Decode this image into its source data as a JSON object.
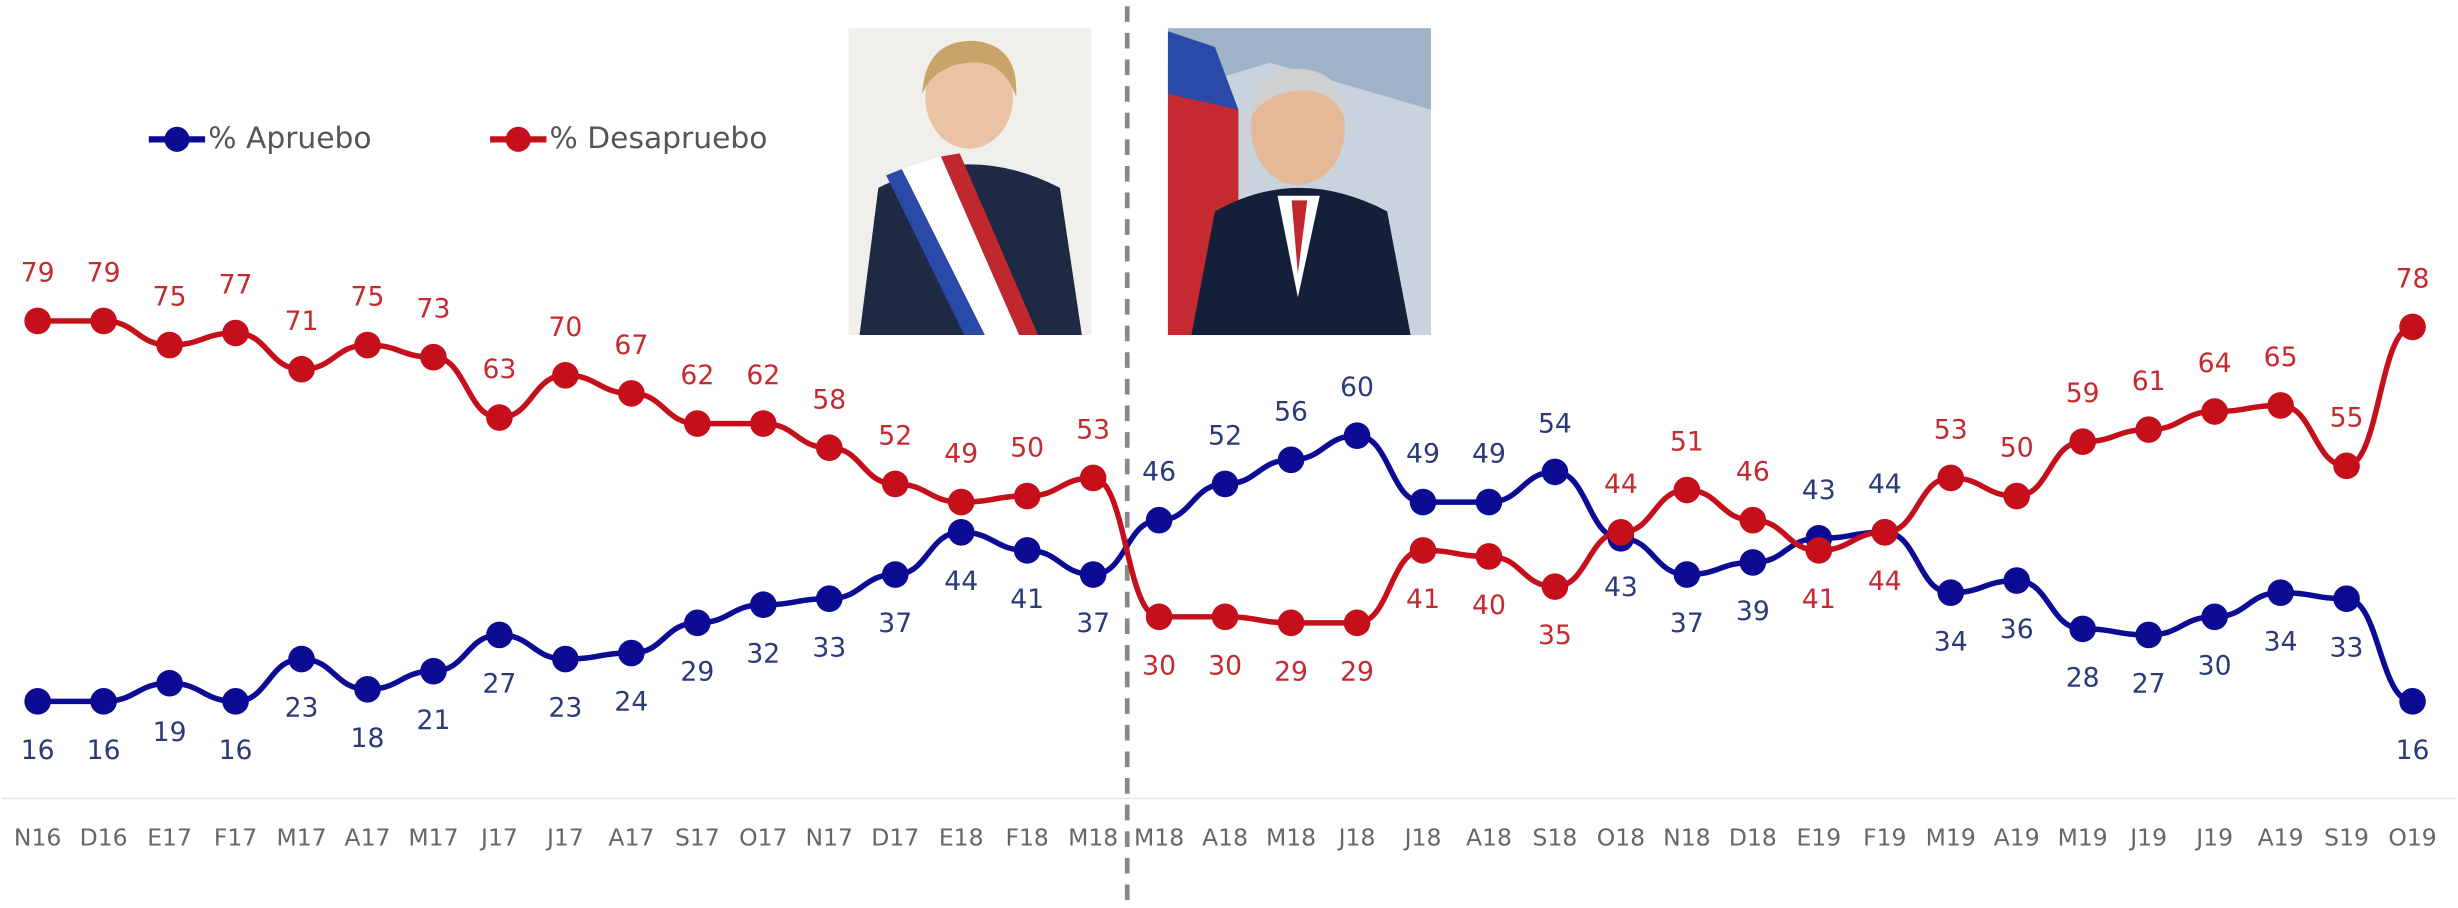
{
  "chart_data": {
    "type": "line",
    "categories": [
      "N16",
      "D16",
      "E17",
      "F17",
      "M17",
      "A17",
      "M17",
      "J17",
      "J17",
      "A17",
      "S17",
      "O17",
      "N17",
      "D17",
      "E18",
      "F18",
      "M18",
      "M18",
      "A18",
      "M18",
      "J18",
      "J18",
      "A18",
      "S18",
      "O18",
      "N18",
      "D18",
      "E19",
      "F19",
      "M19",
      "A19",
      "M19",
      "J19",
      "J19",
      "A19",
      "S19",
      "O19"
    ],
    "series": [
      {
        "name": "% Apruebo",
        "color": "#0b0b94",
        "label_color": "#2b3a78",
        "values": [
          16,
          16,
          19,
          16,
          23,
          18,
          21,
          27,
          23,
          24,
          29,
          32,
          33,
          37,
          44,
          41,
          37,
          46,
          52,
          56,
          60,
          49,
          49,
          54,
          43,
          37,
          39,
          43,
          44,
          34,
          36,
          28,
          27,
          30,
          34,
          33,
          16
        ]
      },
      {
        "name": "% Desapruebo",
        "color": "#c50f1a",
        "label_color": "#c42a30",
        "values": [
          79,
          79,
          75,
          77,
          71,
          75,
          73,
          63,
          70,
          67,
          62,
          62,
          58,
          52,
          49,
          50,
          53,
          30,
          30,
          29,
          29,
          41,
          40,
          35,
          44,
          51,
          46,
          41,
          44,
          53,
          50,
          59,
          61,
          64,
          65,
          55,
          78
        ]
      }
    ]
  }
}
